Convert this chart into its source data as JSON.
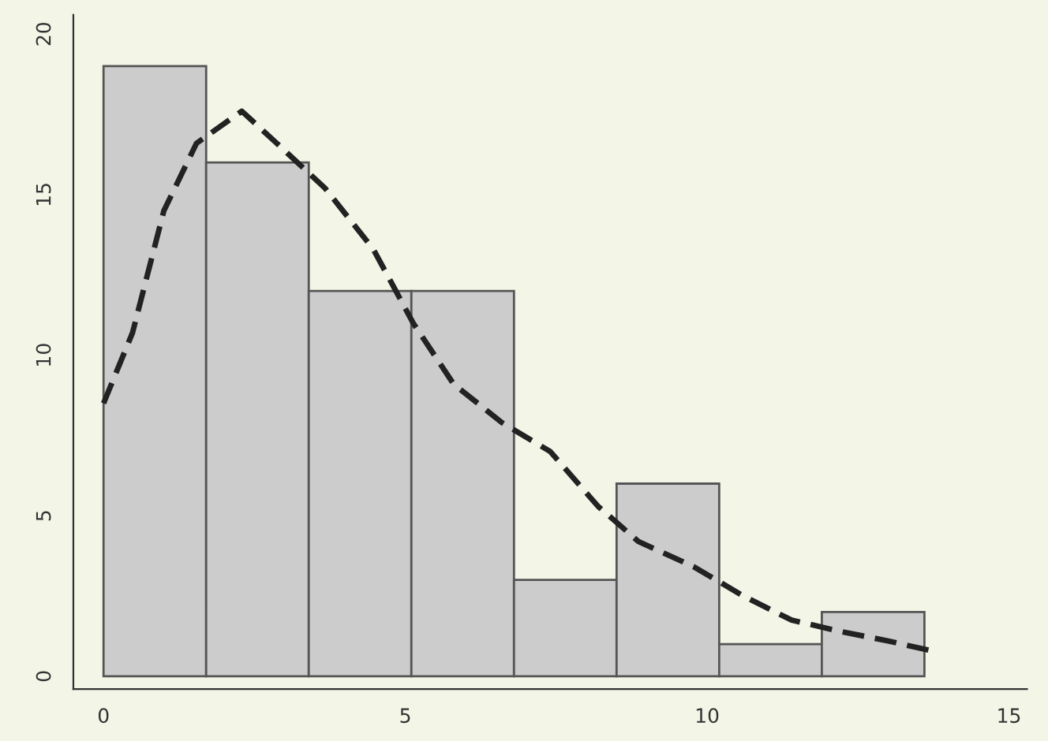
{
  "chart_data": {
    "type": "histogram",
    "bins": [
      0,
      1.7,
      3.4,
      5.1,
      6.8,
      8.5,
      10.2,
      11.9,
      13.6
    ],
    "values": [
      19,
      16,
      12,
      12,
      3,
      6,
      1,
      2
    ],
    "color": "#cccccc",
    "series": [
      {
        "type": "line",
        "color": "#222222",
        "line_style": "dashed",
        "marker": "none",
        "x": [
          0,
          0.48,
          1.0,
          1.54,
          2.29,
          2.87,
          3.67,
          4.47,
          5.13,
          5.8,
          6.6,
          7.4,
          8.19,
          8.86,
          9.79,
          10.6,
          11.4,
          12.2,
          13.0,
          13.7
        ],
        "values": [
          8.5,
          10.7,
          14.5,
          16.6,
          17.6,
          16.6,
          15.2,
          13.3,
          11.0,
          9.1,
          7.9,
          7.0,
          5.3,
          4.2,
          3.4,
          2.5,
          1.75,
          1.4,
          1.1,
          0.8
        ]
      }
    ],
    "xlim": [
      -0.5,
      15.3
    ],
    "xticks": [
      0,
      5,
      10,
      15
    ],
    "ylim": [
      -0.4,
      20.6
    ],
    "yticks": [
      0,
      5,
      10,
      15,
      20
    ],
    "grid": false,
    "legend": false
  }
}
